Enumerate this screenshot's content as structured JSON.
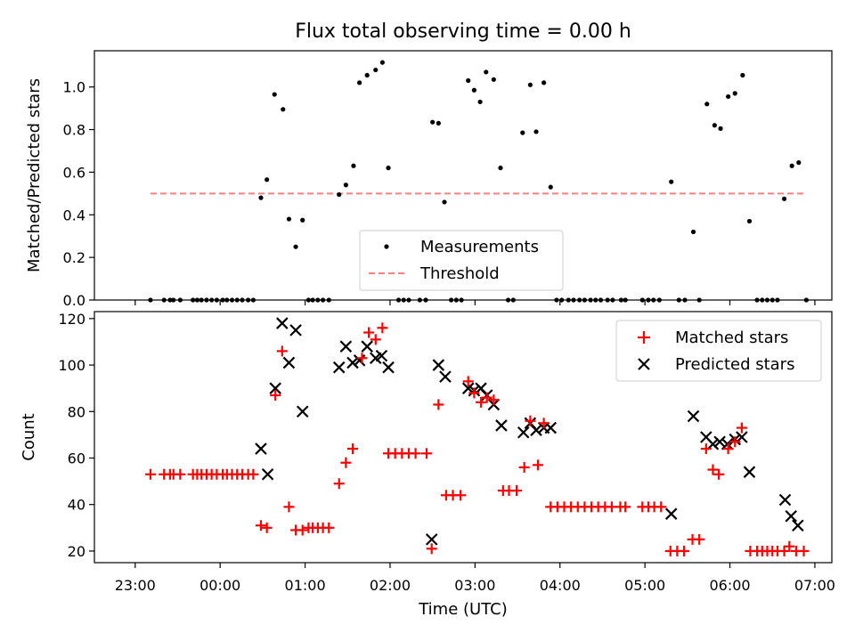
{
  "figure_title": "Flux total observing time = 0.00 h",
  "chart_data": [
    {
      "type": "scatter",
      "ylabel": "Matched/Predicted stars",
      "ylim": [
        0,
        1.17
      ],
      "yticks": [
        "0.0",
        "0.2",
        "0.4",
        "0.6",
        "0.8",
        "1.0"
      ],
      "grid": false,
      "legend": "lower-center",
      "series": [
        {
          "name": "Measurements",
          "marker": "dot",
          "color": "#000000",
          "points": [
            [
              -0.82,
              0
            ],
            [
              -0.66,
              0
            ],
            [
              -0.59,
              0
            ],
            [
              -0.55,
              0
            ],
            [
              -0.47,
              0
            ],
            [
              -0.32,
              0
            ],
            [
              -0.27,
              0
            ],
            [
              -0.22,
              0
            ],
            [
              -0.16,
              0
            ],
            [
              -0.1,
              0
            ],
            [
              -0.04,
              0
            ],
            [
              0.03,
              0
            ],
            [
              0.08,
              0
            ],
            [
              0.14,
              0
            ],
            [
              0.2,
              0
            ],
            [
              0.26,
              0
            ],
            [
              0.33,
              0
            ],
            [
              0.39,
              0
            ],
            [
              0.48,
              0.48
            ],
            [
              0.55,
              0.565
            ],
            [
              0.64,
              0.965
            ],
            [
              0.74,
              0.895
            ],
            [
              0.81,
              0.38
            ],
            [
              0.89,
              0.25
            ],
            [
              0.97,
              0.375
            ],
            [
              1.04,
              0
            ],
            [
              1.09,
              0
            ],
            [
              1.15,
              0
            ],
            [
              1.21,
              0
            ],
            [
              1.28,
              0
            ],
            [
              1.4,
              0.495
            ],
            [
              1.48,
              0.54
            ],
            [
              1.57,
              0.63
            ],
            [
              1.64,
              1.02
            ],
            [
              1.73,
              1.055
            ],
            [
              1.83,
              1.08
            ],
            [
              1.91,
              1.115
            ],
            [
              1.98,
              0.62
            ],
            [
              2.1,
              0
            ],
            [
              2.16,
              0
            ],
            [
              2.22,
              0
            ],
            [
              2.35,
              0
            ],
            [
              2.42,
              0
            ],
            [
              2.5,
              0.835
            ],
            [
              2.57,
              0.83
            ],
            [
              2.64,
              0.46
            ],
            [
              2.72,
              0
            ],
            [
              2.78,
              0
            ],
            [
              2.84,
              0
            ],
            [
              2.92,
              1.03
            ],
            [
              2.99,
              0.985
            ],
            [
              3.06,
              0.93
            ],
            [
              3.13,
              1.07
            ],
            [
              3.22,
              1.035
            ],
            [
              3.3,
              0.62
            ],
            [
              3.39,
              0
            ],
            [
              3.45,
              0
            ],
            [
              3.56,
              0.785
            ],
            [
              3.65,
              1.01
            ],
            [
              3.72,
              0.79
            ],
            [
              3.81,
              1.02
            ],
            [
              3.89,
              0.53
            ],
            [
              3.96,
              0
            ],
            [
              4.02,
              0
            ],
            [
              4.1,
              0
            ],
            [
              4.16,
              0
            ],
            [
              4.23,
              0
            ],
            [
              4.29,
              0
            ],
            [
              4.36,
              0
            ],
            [
              4.42,
              0
            ],
            [
              4.48,
              0
            ],
            [
              4.56,
              0
            ],
            [
              4.62,
              0
            ],
            [
              4.72,
              0
            ],
            [
              4.77,
              0
            ],
            [
              4.97,
              0
            ],
            [
              5.04,
              0
            ],
            [
              5.1,
              0
            ],
            [
              5.17,
              0
            ],
            [
              5.31,
              0.555
            ],
            [
              5.4,
              0
            ],
            [
              5.47,
              0
            ],
            [
              5.57,
              0.32
            ],
            [
              5.64,
              0
            ],
            [
              5.73,
              0.92
            ],
            [
              5.82,
              0.82
            ],
            [
              5.89,
              0.805
            ],
            [
              5.98,
              0.955
            ],
            [
              6.06,
              0.97
            ],
            [
              6.15,
              1.055
            ],
            [
              6.23,
              0.37
            ],
            [
              6.32,
              0
            ],
            [
              6.38,
              0
            ],
            [
              6.44,
              0
            ],
            [
              6.5,
              0
            ],
            [
              6.56,
              0
            ],
            [
              6.64,
              0.475
            ],
            [
              6.73,
              0.63
            ],
            [
              6.81,
              0.645
            ],
            [
              6.9,
              0
            ]
          ]
        },
        {
          "name": "Threshold",
          "marker": "dashed-line",
          "color": "#ff7f7f",
          "points": [
            [
              -0.82,
              0.5
            ],
            [
              6.9,
              0.5
            ]
          ]
        }
      ]
    },
    {
      "type": "scatter",
      "xlabel": "Time (UTC)",
      "ylabel": "Count",
      "ylim": [
        15,
        123
      ],
      "yticks": [
        "20",
        "40",
        "60",
        "80",
        "100",
        "120"
      ],
      "xticks": [
        {
          "at": -1,
          "label": "23:00"
        },
        {
          "at": 0,
          "label": "00:00"
        },
        {
          "at": 1,
          "label": "01:00"
        },
        {
          "at": 2,
          "label": "02:00"
        },
        {
          "at": 3,
          "label": "03:00"
        },
        {
          "at": 4,
          "label": "04:00"
        },
        {
          "at": 5,
          "label": "05:00"
        },
        {
          "at": 6,
          "label": "06:00"
        },
        {
          "at": 7,
          "label": "07:00"
        }
      ],
      "xlim": [
        -1.48,
        7.2
      ],
      "grid": false,
      "legend": "upper-right",
      "series": [
        {
          "name": "Matched stars",
          "marker": "plus",
          "color": "#ff0000",
          "points": [
            [
              -0.82,
              53
            ],
            [
              -0.66,
              53
            ],
            [
              -0.59,
              53
            ],
            [
              -0.55,
              53
            ],
            [
              -0.47,
              53
            ],
            [
              -0.32,
              53
            ],
            [
              -0.27,
              53
            ],
            [
              -0.22,
              53
            ],
            [
              -0.16,
              53
            ],
            [
              -0.1,
              53
            ],
            [
              -0.04,
              53
            ],
            [
              0.03,
              53
            ],
            [
              0.08,
              53
            ],
            [
              0.14,
              53
            ],
            [
              0.2,
              53
            ],
            [
              0.26,
              53
            ],
            [
              0.33,
              53
            ],
            [
              0.39,
              53
            ],
            [
              0.48,
              31
            ],
            [
              0.55,
              30
            ],
            [
              0.65,
              87
            ],
            [
              0.73,
              106
            ],
            [
              0.81,
              39
            ],
            [
              0.89,
              29
            ],
            [
              0.97,
              29
            ],
            [
              1.04,
              30
            ],
            [
              1.09,
              30
            ],
            [
              1.15,
              30
            ],
            [
              1.21,
              30
            ],
            [
              1.28,
              30
            ],
            [
              1.4,
              49
            ],
            [
              1.48,
              58
            ],
            [
              1.56,
              64
            ],
            [
              1.67,
              103
            ],
            [
              1.75,
              114
            ],
            [
              1.83,
              111
            ],
            [
              1.91,
              116
            ],
            [
              1.98,
              62
            ],
            [
              2.06,
              62
            ],
            [
              2.14,
              62
            ],
            [
              2.22,
              62
            ],
            [
              2.3,
              62
            ],
            [
              2.43,
              62
            ],
            [
              2.49,
              21
            ],
            [
              2.57,
              83
            ],
            [
              2.66,
              44
            ],
            [
              2.74,
              44
            ],
            [
              2.83,
              44
            ],
            [
              2.92,
              93
            ],
            [
              2.99,
              88
            ],
            [
              3.07,
              84
            ],
            [
              3.14,
              86
            ],
            [
              3.22,
              85
            ],
            [
              3.33,
              46
            ],
            [
              3.4,
              46
            ],
            [
              3.49,
              46
            ],
            [
              3.58,
              56
            ],
            [
              3.65,
              76
            ],
            [
              3.74,
              57
            ],
            [
              3.81,
              75
            ],
            [
              3.89,
              39
            ],
            [
              3.97,
              39
            ],
            [
              4.05,
              39
            ],
            [
              4.13,
              39
            ],
            [
              4.21,
              39
            ],
            [
              4.29,
              39
            ],
            [
              4.37,
              39
            ],
            [
              4.45,
              39
            ],
            [
              4.53,
              39
            ],
            [
              4.61,
              39
            ],
            [
              4.71,
              39
            ],
            [
              4.77,
              39
            ],
            [
              4.97,
              39
            ],
            [
              5.04,
              39
            ],
            [
              5.11,
              39
            ],
            [
              5.19,
              39
            ],
            [
              5.3,
              20
            ],
            [
              5.38,
              20
            ],
            [
              5.46,
              20
            ],
            [
              5.56,
              25
            ],
            [
              5.64,
              25
            ],
            [
              5.72,
              64
            ],
            [
              5.8,
              55
            ],
            [
              5.87,
              53
            ],
            [
              5.98,
              64
            ],
            [
              6.06,
              67
            ],
            [
              6.14,
              73
            ],
            [
              6.24,
              20
            ],
            [
              6.32,
              20
            ],
            [
              6.38,
              20
            ],
            [
              6.44,
              20
            ],
            [
              6.5,
              20
            ],
            [
              6.56,
              20
            ],
            [
              6.64,
              20
            ],
            [
              6.7,
              22
            ],
            [
              6.78,
              20
            ],
            [
              6.87,
              20
            ]
          ]
        },
        {
          "name": "Predicted stars",
          "marker": "x",
          "color": "#000000",
          "points": [
            [
              0.48,
              64
            ],
            [
              0.56,
              53
            ],
            [
              0.65,
              90
            ],
            [
              0.73,
              118
            ],
            [
              0.81,
              101
            ],
            [
              0.89,
              115
            ],
            [
              0.97,
              80
            ],
            [
              1.4,
              99
            ],
            [
              1.48,
              108
            ],
            [
              1.56,
              101
            ],
            [
              1.64,
              102
            ],
            [
              1.73,
              108
            ],
            [
              1.83,
              103
            ],
            [
              1.9,
              104
            ],
            [
              1.98,
              99
            ],
            [
              2.49,
              25
            ],
            [
              2.57,
              100
            ],
            [
              2.65,
              95
            ],
            [
              2.92,
              90
            ],
            [
              2.99,
              89
            ],
            [
              3.07,
              90
            ],
            [
              3.14,
              87
            ],
            [
              3.22,
              83
            ],
            [
              3.31,
              74
            ],
            [
              3.57,
              71
            ],
            [
              3.65,
              75
            ],
            [
              3.72,
              72
            ],
            [
              3.81,
              73
            ],
            [
              3.89,
              73
            ],
            [
              5.31,
              36
            ],
            [
              5.57,
              78
            ],
            [
              5.72,
              69
            ],
            [
              5.8,
              66
            ],
            [
              5.88,
              67
            ],
            [
              5.97,
              66
            ],
            [
              6.06,
              68
            ],
            [
              6.14,
              69
            ],
            [
              6.23,
              54
            ],
            [
              6.65,
              42
            ],
            [
              6.72,
              35
            ],
            [
              6.8,
              31
            ]
          ]
        }
      ]
    }
  ]
}
